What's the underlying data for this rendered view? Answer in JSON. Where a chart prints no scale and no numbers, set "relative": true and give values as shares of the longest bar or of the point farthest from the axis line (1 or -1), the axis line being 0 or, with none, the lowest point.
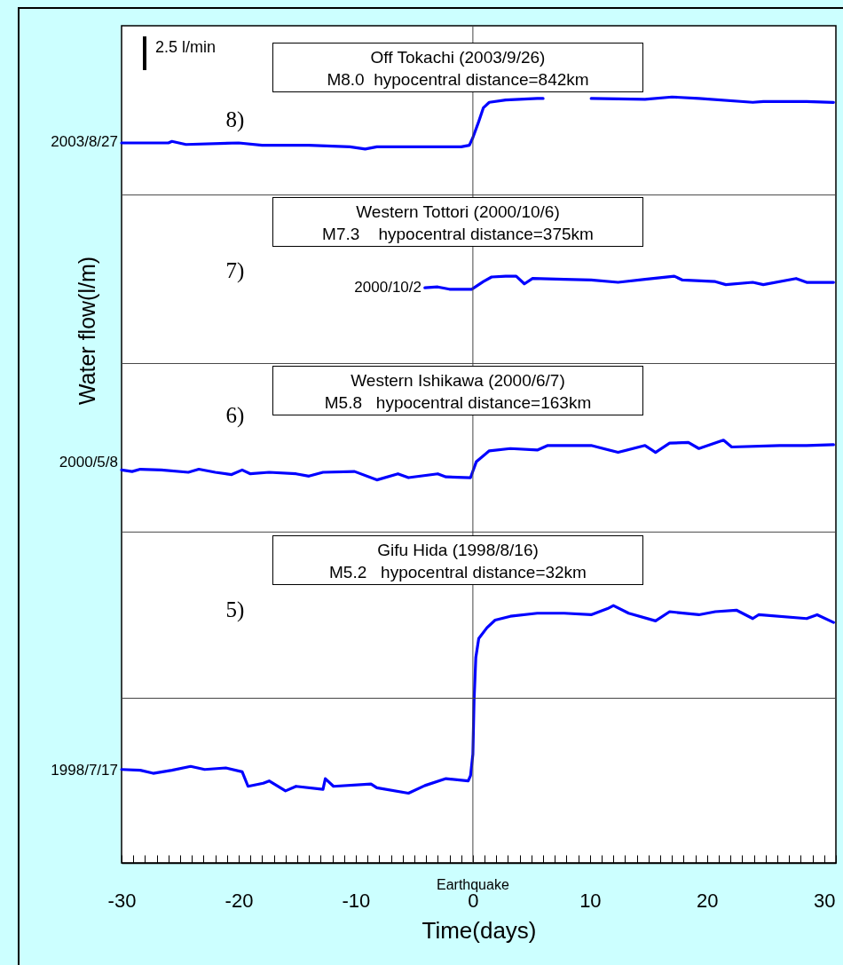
{
  "chart_data": {
    "type": "line",
    "xlabel": "Time(days)",
    "ylabel": "Water flow(l/m)",
    "relative": true,
    "xlim": [
      -30,
      31
    ],
    "xticks": [
      -30,
      {
        "value": -29,
        "label": null
      },
      {
        "value": -28,
        "label": null
      },
      {
        "value": -27,
        "label": null
      },
      {
        "value": -26,
        "label": null
      },
      {
        "value": -25,
        "label": null
      },
      {
        "value": -24,
        "label": null
      },
      {
        "value": -23,
        "label": null
      },
      {
        "value": -22,
        "label": null
      },
      {
        "value": -21,
        "label": null
      },
      -20,
      {
        "value": -19,
        "label": null
      },
      {
        "value": -18,
        "label": null
      },
      {
        "value": -17,
        "label": null
      },
      {
        "value": -16,
        "label": null
      },
      {
        "value": -15,
        "label": null
      },
      {
        "value": -14,
        "label": null
      },
      {
        "value": -13,
        "label": null
      },
      {
        "value": -12,
        "label": null
      },
      {
        "value": -11,
        "label": null
      },
      -10,
      {
        "value": -9,
        "label": null
      },
      {
        "value": -8,
        "label": null
      },
      {
        "value": -7,
        "label": null
      },
      {
        "value": -6,
        "label": null
      },
      {
        "value": -5,
        "label": null
      },
      {
        "value": -4,
        "label": null
      },
      {
        "value": -3,
        "label": null
      },
      {
        "value": -2,
        "label": null
      },
      {
        "value": -1,
        "label": null
      },
      0,
      {
        "value": 1,
        "label": null
      },
      {
        "value": 2,
        "label": null
      },
      {
        "value": 3,
        "label": null
      },
      {
        "value": 4,
        "label": null
      },
      {
        "value": 5,
        "label": null
      },
      {
        "value": 6,
        "label": null
      },
      {
        "value": 7,
        "label": null
      },
      {
        "value": 8,
        "label": null
      },
      {
        "value": 9,
        "label": null
      },
      10,
      {
        "value": 11,
        "label": null
      },
      {
        "value": 12,
        "label": null
      },
      {
        "value": 13,
        "label": null
      },
      {
        "value": 14,
        "label": null
      },
      {
        "value": 15,
        "label": null
      },
      {
        "value": 16,
        "label": null
      },
      {
        "value": 17,
        "label": null
      },
      {
        "value": 18,
        "label": null
      },
      {
        "value": 19,
        "label": null
      },
      20,
      {
        "value": 21,
        "label": null
      },
      {
        "value": 22,
        "label": null
      },
      {
        "value": 23,
        "label": null
      },
      {
        "value": 24,
        "label": null
      },
      {
        "value": 25,
        "label": null
      },
      {
        "value": 26,
        "label": null
      },
      {
        "value": 27,
        "label": null
      },
      {
        "value": 28,
        "label": null
      },
      {
        "value": 29,
        "label": null
      },
      30,
      {
        "value": 31,
        "label": null
      }
    ],
    "marker": "none",
    "line_style": "solid",
    "series": [
      {
        "color": "#0000ff",
        "x": [
          -30,
          -26,
          -25.7,
          -24.5,
          -20,
          -18,
          -14,
          -10.5,
          -9.2,
          -8.2,
          -5,
          -1,
          -0.3,
          0,
          0.5,
          0.9,
          1.4,
          2.8,
          5.5,
          6,
          8,
          10.1,
          14.7,
          17,
          19.3,
          23.9,
          24.8,
          28.5,
          30.8
        ],
        "values": [
          0.94,
          0.94,
          0.942,
          0.938,
          0.94,
          0.937,
          0.937,
          0.935,
          0.932,
          0.935,
          0.935,
          0.935,
          0.937,
          0.947,
          0.968,
          0.986,
          0.993,
          0.996,
          0.998,
          0.998,
          null,
          0.998,
          0.997,
          1.0,
          0.998,
          0.993,
          0.994,
          0.994,
          0.993
        ]
      },
      {
        "color": "#0000ff",
        "x": [
          -4.1,
          -3,
          -2,
          -0.1,
          0.9,
          1.6,
          2.8,
          3.7,
          4.4,
          5.1,
          7.8,
          10.1,
          12.4,
          14.7,
          17.2,
          17.9,
          20.7,
          21.6,
          23.9,
          24.8,
          27.6,
          28.5,
          30.8
        ],
        "values": [
          0.751,
          0.752,
          0.749,
          0.749,
          0.759,
          0.765,
          0.766,
          0.766,
          0.756,
          0.763,
          0.762,
          0.761,
          0.758,
          0.762,
          0.766,
          0.761,
          0.759,
          0.755,
          0.758,
          0.755,
          0.763,
          0.758,
          0.758
        ]
      },
      {
        "color": "#0000ff",
        "x": [
          -30,
          -29.1,
          -28.4,
          -26.6,
          -24.3,
          -23.4,
          -22,
          -20.6,
          -19.7,
          -19,
          -17.4,
          -15.1,
          -14,
          -12.8,
          -10.1,
          -8.2,
          -6.4,
          -5.5,
          -3,
          -2.3,
          -0.2,
          0.3,
          1.4,
          3.2,
          5.5,
          6.4,
          10.1,
          12.4,
          14.7,
          15.6,
          16.8,
          18.4,
          19.3,
          21.4,
          22.1,
          26.2,
          28.5,
          30.8
        ],
        "values": [
          0.513,
          0.511,
          0.514,
          0.513,
          0.51,
          0.514,
          0.51,
          0.507,
          0.513,
          0.508,
          0.51,
          0.508,
          0.505,
          0.51,
          0.511,
          0.5,
          0.508,
          0.503,
          0.508,
          0.504,
          0.503,
          0.524,
          0.538,
          0.541,
          0.539,
          0.545,
          0.545,
          0.536,
          0.545,
          0.536,
          0.548,
          0.549,
          0.541,
          0.552,
          0.543,
          0.545,
          0.545,
          0.546
        ]
      },
      {
        "color": "#0000ff",
        "x": [
          -30,
          -28.4,
          -27.3,
          -25.7,
          -24.1,
          -22.9,
          -21.1,
          -19.7,
          -19.2,
          -17.9,
          -17.4,
          -16,
          -15.1,
          -12.8,
          -12.6,
          -11.9,
          -8.7,
          -8.2,
          -5.5,
          -4.1,
          -2.3,
          -0.4,
          -0.2,
          0,
          0.1,
          0.25,
          0.5,
          1.2,
          1.9,
          3.2,
          5.5,
          7.8,
          10.1,
          11.5,
          12,
          13.3,
          15.6,
          16.8,
          19.3,
          20.7,
          22.5,
          23.9,
          24.4,
          28.5,
          29.4,
          30.8
        ],
        "values": [
          0.122,
          0.121,
          0.117,
          0.121,
          0.126,
          0.122,
          0.124,
          0.119,
          0.1,
          0.104,
          0.107,
          0.094,
          0.1,
          0.096,
          0.11,
          0.1,
          0.103,
          0.098,
          0.091,
          0.101,
          0.11,
          0.107,
          0.114,
          0.142,
          0.212,
          0.268,
          0.293,
          0.307,
          0.317,
          0.322,
          0.326,
          0.326,
          0.324,
          0.332,
          0.336,
          0.326,
          0.316,
          0.328,
          0.324,
          0.328,
          0.33,
          0.319,
          0.324,
          0.319,
          0.324,
          0.314
        ]
      }
    ],
    "ref_lines": [
      {
        "axis": "x",
        "value": 0,
        "label": "Earthquake"
      },
      {
        "axis": "y",
        "value": 0.872,
        "label": null
      },
      {
        "axis": "y",
        "value": 0.652,
        "label": null
      },
      {
        "axis": "y",
        "value": 0.432,
        "label": null
      },
      {
        "axis": "y",
        "value": 0.215,
        "label": null
      }
    ],
    "annotations": [
      "Off Tokachi (2003/9/26)\nM8.0  hypocentral distance=842km",
      "Western Tottori (2000/10/6)\nM7.3    hypocentral distance=375km",
      "Western Ishikawa (2000/6/7)\nM5.8   hypocentral distance=163km",
      "Gifu Hida (1998/8/16)\nM5.2   hypocentral distance=32km",
      "8)",
      "7)",
      "6)",
      "5)",
      "2.5  l/min",
      "2003/8/27",
      "2000/10/2",
      "2000/5/8",
      "1998/7/17"
    ]
  }
}
